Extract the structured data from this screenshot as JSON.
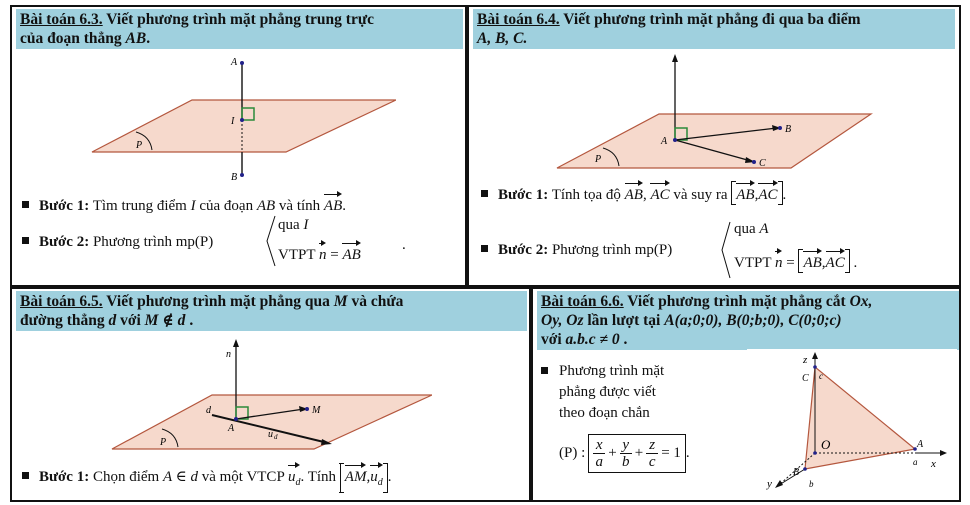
{
  "p63": {
    "num": "Bài toán 6.3.",
    "title_rest": " Viết phương trình mặt phẳng trung trực",
    "title_line2_prefix": "của đoạn thẳng ",
    "title_line2_var": "AB",
    "title_line2_suffix": ".",
    "fig": {
      "A": "A",
      "I": "I",
      "B": "B",
      "P": "P"
    },
    "step1_label": "Bước 1:",
    "step1_text": " Tìm trung điểm ",
    "step1_I": "I",
    "step1_text2": " của đoạn ",
    "step1_AB": "AB",
    "step1_text3": " và tính ",
    "step1_vec": "AB",
    "step1_end": ".",
    "step2_label": "Bước 2:",
    "step2_text": " Phương trình  mp(P)",
    "sys_line1_a": "qua ",
    "sys_line1_b": "I",
    "sys_line2_a": "VTPT ",
    "sys_line2_n": "n",
    "sys_line2_eq": " = ",
    "sys_line2_vec": "AB",
    "sys_end": "."
  },
  "p64": {
    "num": "Bài toán 6.4.",
    "title_rest": " Viết phương trình mặt phẳng đi qua ba điểm",
    "title_line2": "A, B, C.",
    "fig": {
      "A": "A",
      "B": "B",
      "C": "C",
      "P": "P"
    },
    "step1_label": "Bước 1:",
    "step1_text": " Tính tọa độ ",
    "step1_v1": "AB",
    "step1_sep": ", ",
    "step1_v2": "AC",
    "step1_text2": " và suy ra ",
    "step1_b1": "AB",
    "step1_bsep": ",",
    "step1_b2": "AC",
    "step1_end": ".",
    "step2_label": "Bước 2:",
    "step2_text": " Phương trình  mp(P)",
    "sys_line1_a": "qua ",
    "sys_line1_b": "A",
    "sys_line2_a": "VTPT ",
    "sys_line2_n": "n",
    "sys_line2_eq": " = ",
    "sys_b1": "AB",
    "sys_bsep": ",",
    "sys_b2": "AC",
    "sys_end": "."
  },
  "p65": {
    "num": "Bài toán 6.5.",
    "title_rest": " Viết phương trình mặt phẳng qua ",
    "title_M": "M",
    "title_rest2": " và chứa",
    "title_line2_a": "đường thẳng ",
    "title_line2_d": "d",
    "title_line2_b": " với  ",
    "title_line2_cond": "M ∉ d",
    "title_line2_end": " .",
    "fig": {
      "n": "n",
      "d": "d",
      "A": "A",
      "M": "M",
      "ud": "u",
      "ud_sub": "d",
      "P": "P"
    },
    "step1_label": "Bước 1:",
    "step1_text": " Chọn điểm  ",
    "step1_cond": "A ∈ d",
    "step1_text2": "  và một VTCP  ",
    "step1_u": "u",
    "step1_u_sub": "d",
    "step1_text3": ".  Tính ",
    "step1_b1": "AM",
    "step1_bsep": ",",
    "step1_b2": "u",
    "step1_b2_sub": "d",
    "step1_end": "."
  },
  "p66": {
    "num": "Bài toán 6.6.",
    "title_rest": " Viết phương trình mặt phẳng cắt ",
    "title_ox": "Ox,",
    "title_line2": "Oy, Oz",
    "title_line2_b": " lần lượt tại  ",
    "title_pts": "A(a;0;0), B(0;b;0), C(0;0;c)",
    "title_line3_a": "với  ",
    "title_line3_cond": "a.b.c ≠ 0",
    "title_line3_end": " .",
    "bullet_line1": "Phương trình mặt",
    "bullet_line2": "phẳng được viết",
    "bullet_line3": "theo đoạn chắn",
    "eq_lhs": "(P) :",
    "eq_x": "x",
    "eq_a": "a",
    "eq_y": "y",
    "eq_b": "b",
    "eq_z": "z",
    "eq_c": "c",
    "eq_plus": "+",
    "eq_rhs": "= 1",
    "eq_end": ".",
    "fig": {
      "z": "z",
      "C": "C",
      "c": "c",
      "O": "O",
      "A": "A",
      "a": "a",
      "x": "x",
      "B": "B",
      "b": "b",
      "y": "y"
    }
  },
  "colors": {
    "title_bg": "#9fd0de",
    "plane_fill": "#f6d9cc",
    "plane_stroke": "#b4573e",
    "marker": "#2a8a3a"
  }
}
